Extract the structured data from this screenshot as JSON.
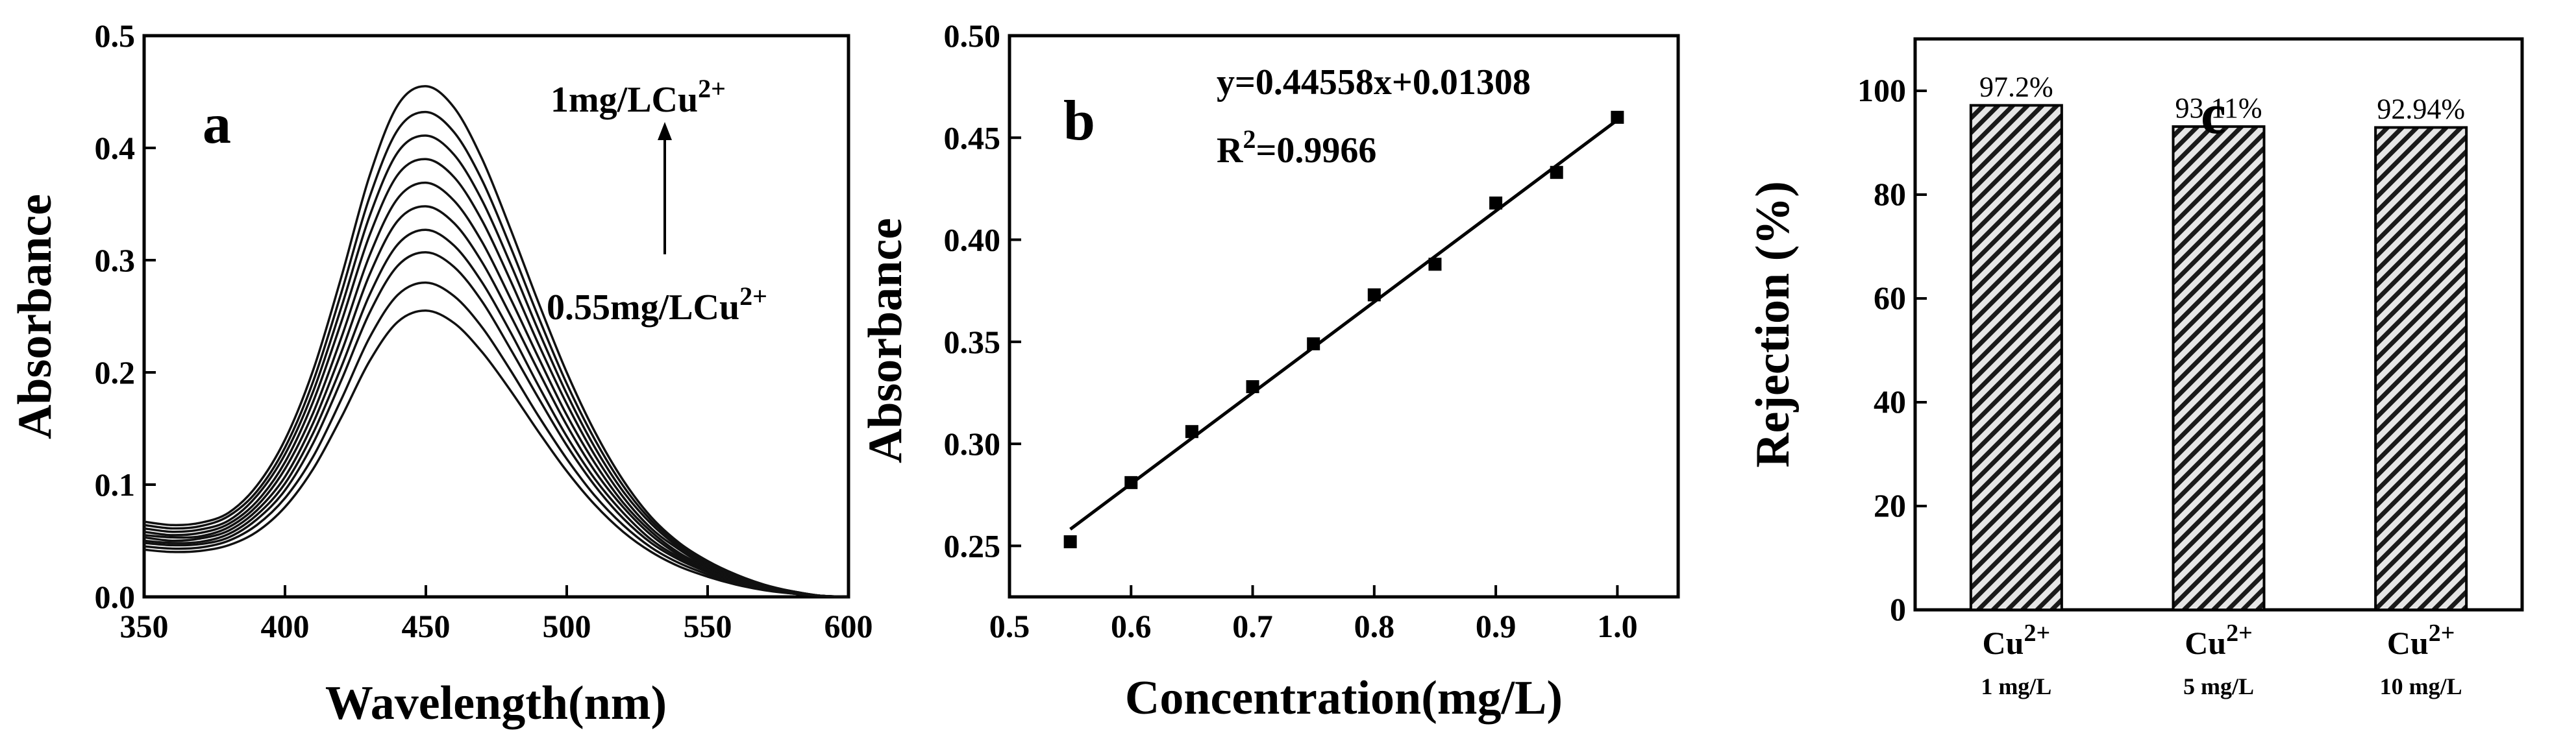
{
  "chart_data": [
    {
      "panel": "a",
      "type": "line",
      "xlabel": "Wavelength(nm)",
      "ylabel": "Absorbance",
      "xlim": [
        350,
        600
      ],
      "ylim": [
        0.0,
        0.5
      ],
      "xticks": [
        "350",
        "400",
        "450",
        "500",
        "550",
        "600"
      ],
      "yticks": [
        "0.0",
        "0.1",
        "0.2",
        "0.3",
        "0.4",
        "0.5"
      ],
      "x": [
        350,
        360,
        370,
        380,
        390,
        400,
        410,
        420,
        430,
        440,
        450,
        460,
        470,
        480,
        490,
        500,
        510,
        520,
        530,
        540,
        550,
        560,
        570,
        580,
        590,
        600
      ],
      "series": [
        {
          "values": [
            0.042,
            0.04,
            0.041,
            0.046,
            0.058,
            0.08,
            0.114,
            0.16,
            0.21,
            0.245,
            0.255,
            0.244,
            0.218,
            0.184,
            0.147,
            0.112,
            0.082,
            0.058,
            0.04,
            0.027,
            0.018,
            0.011,
            0.006,
            0.003,
            0.001,
            0.0
          ]
        },
        {
          "values": [
            0.045,
            0.043,
            0.044,
            0.05,
            0.064,
            0.088,
            0.125,
            0.176,
            0.231,
            0.269,
            0.28,
            0.268,
            0.24,
            0.202,
            0.161,
            0.123,
            0.09,
            0.064,
            0.044,
            0.03,
            0.02,
            0.012,
            0.007,
            0.003,
            0.001,
            0.0
          ]
        },
        {
          "values": [
            0.048,
            0.046,
            0.047,
            0.053,
            0.069,
            0.095,
            0.137,
            0.193,
            0.253,
            0.295,
            0.307,
            0.294,
            0.263,
            0.221,
            0.177,
            0.135,
            0.099,
            0.07,
            0.048,
            0.033,
            0.022,
            0.013,
            0.007,
            0.003,
            0.001,
            0.0
          ]
        },
        {
          "values": [
            0.05,
            0.048,
            0.049,
            0.056,
            0.073,
            0.101,
            0.146,
            0.205,
            0.269,
            0.314,
            0.327,
            0.313,
            0.28,
            0.236,
            0.188,
            0.143,
            0.105,
            0.075,
            0.051,
            0.035,
            0.023,
            0.014,
            0.008,
            0.004,
            0.001,
            0.0
          ]
        },
        {
          "values": [
            0.053,
            0.05,
            0.052,
            0.059,
            0.077,
            0.107,
            0.155,
            0.218,
            0.287,
            0.335,
            0.348,
            0.333,
            0.298,
            0.251,
            0.201,
            0.153,
            0.112,
            0.08,
            0.055,
            0.037,
            0.024,
            0.015,
            0.008,
            0.004,
            0.001,
            0.0
          ]
        },
        {
          "values": [
            0.055,
            0.053,
            0.054,
            0.062,
            0.081,
            0.114,
            0.164,
            0.231,
            0.304,
            0.355,
            0.369,
            0.353,
            0.316,
            0.266,
            0.213,
            0.162,
            0.119,
            0.084,
            0.058,
            0.039,
            0.026,
            0.016,
            0.009,
            0.004,
            0.001,
            0.0
          ]
        },
        {
          "values": [
            0.058,
            0.055,
            0.057,
            0.065,
            0.085,
            0.12,
            0.174,
            0.245,
            0.322,
            0.376,
            0.39,
            0.374,
            0.335,
            0.282,
            0.225,
            0.172,
            0.126,
            0.089,
            0.061,
            0.042,
            0.027,
            0.017,
            0.009,
            0.004,
            0.001,
            0.0
          ]
        },
        {
          "values": [
            0.061,
            0.058,
            0.06,
            0.068,
            0.09,
            0.127,
            0.183,
            0.258,
            0.339,
            0.396,
            0.411,
            0.394,
            0.353,
            0.297,
            0.237,
            0.181,
            0.133,
            0.094,
            0.065,
            0.044,
            0.029,
            0.018,
            0.01,
            0.005,
            0.001,
            0.0
          ]
        },
        {
          "values": [
            0.064,
            0.061,
            0.063,
            0.072,
            0.094,
            0.133,
            0.192,
            0.271,
            0.356,
            0.416,
            0.432,
            0.414,
            0.371,
            0.312,
            0.249,
            0.19,
            0.14,
            0.099,
            0.068,
            0.046,
            0.03,
            0.019,
            0.01,
            0.005,
            0.001,
            0.0
          ]
        },
        {
          "values": [
            0.067,
            0.064,
            0.066,
            0.075,
            0.099,
            0.14,
            0.202,
            0.285,
            0.375,
            0.438,
            0.455,
            0.436,
            0.39,
            0.328,
            0.262,
            0.2,
            0.147,
            0.104,
            0.071,
            0.048,
            0.032,
            0.02,
            0.011,
            0.005,
            0.001,
            0.0
          ]
        }
      ],
      "annotations": {
        "top": "1mg/LCu",
        "bottom": "0.55mg/LCu",
        "superscript": "2+"
      }
    },
    {
      "panel": "b",
      "type": "scatter",
      "xlabel": "Concentration(mg/L)",
      "ylabel": "Absorbance",
      "xlim": [
        0.5,
        1.05
      ],
      "ylim": [
        0.225,
        0.5
      ],
      "xticks": [
        "0.5",
        "0.6",
        "0.7",
        "0.8",
        "0.9",
        "1.0"
      ],
      "yticks": [
        "0.25",
        "0.30",
        "0.35",
        "0.40",
        "0.45",
        "0.50"
      ],
      "x": [
        0.55,
        0.6,
        0.65,
        0.7,
        0.75,
        0.8,
        0.85,
        0.9,
        0.95,
        1.0
      ],
      "y": [
        0.252,
        0.281,
        0.306,
        0.328,
        0.349,
        0.373,
        0.388,
        0.418,
        0.433,
        0.46
      ],
      "fit": {
        "slope": 0.44558,
        "intercept": 0.01308,
        "x_range": [
          0.55,
          1.0
        ]
      },
      "equation": "y=0.44558x+0.01308",
      "r2_prefix": "R",
      "r2_exponent": "2",
      "r2_value": "=0.9966"
    },
    {
      "panel": "c",
      "type": "bar",
      "ylabel": "Rejection (%)",
      "ylim": [
        0,
        110
      ],
      "yticks": [
        "0",
        "20",
        "40",
        "60",
        "80",
        "100"
      ],
      "categories": [
        {
          "ion": "Cu",
          "charge": "2+",
          "concentration": "1 mg/L"
        },
        {
          "ion": "Cu",
          "charge": "2+",
          "concentration": "5 mg/L"
        },
        {
          "ion": "Cu",
          "charge": "2+",
          "concentration": "10 mg/L"
        }
      ],
      "values": [
        97.2,
        93.11,
        92.94
      ],
      "value_labels": [
        "97.2%",
        "93.11%",
        "92.94%"
      ]
    }
  ]
}
